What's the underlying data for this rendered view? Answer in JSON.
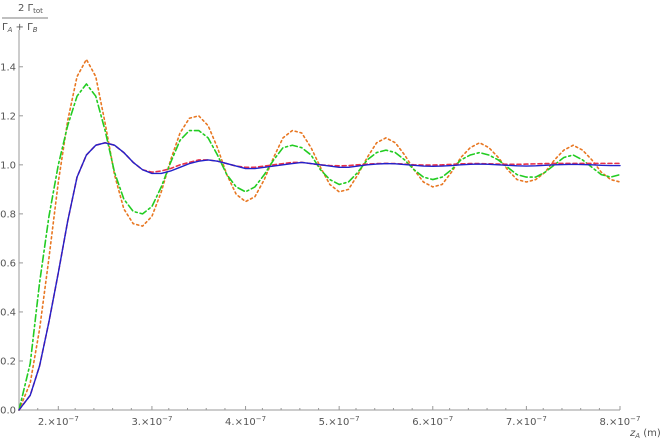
{
  "chart_data": {
    "type": "line",
    "title": "",
    "ylabel": {
      "numerator": "2 Γ",
      "numerator_sub": "tot",
      "denominator": [
        "Γ",
        "A",
        " + Γ",
        "B"
      ]
    },
    "xlabel": {
      "main": "z",
      "sub": "A",
      "unit": " (m)"
    },
    "xlim": [
      1.58e-07,
      8e-07
    ],
    "ylim": [
      0.0,
      1.55
    ],
    "grid": false,
    "x_ticks": [
      {
        "value": 2e-07,
        "mantissa": "2.",
        "base": "×10",
        "exp": "−7"
      },
      {
        "value": 3e-07,
        "mantissa": "3.",
        "base": "×10",
        "exp": "−7"
      },
      {
        "value": 4e-07,
        "mantissa": "4.",
        "base": "×10",
        "exp": "−7"
      },
      {
        "value": 5e-07,
        "mantissa": "5.",
        "base": "×10",
        "exp": "−7"
      },
      {
        "value": 6e-07,
        "mantissa": "6.",
        "base": "×10",
        "exp": "−7"
      },
      {
        "value": 7e-07,
        "mantissa": "7.",
        "base": "×10",
        "exp": "−7"
      },
      {
        "value": 8e-07,
        "mantissa": "8.",
        "base": "×10",
        "exp": "−7"
      }
    ],
    "y_ticks": [
      {
        "value": 0.0,
        "label": "0.0"
      },
      {
        "value": 0.2,
        "label": "0.2"
      },
      {
        "value": 0.4,
        "label": "0.4"
      },
      {
        "value": 0.6,
        "label": "0.6"
      },
      {
        "value": 0.8,
        "label": "0.8"
      },
      {
        "value": 1.0,
        "label": "1.0"
      },
      {
        "value": 1.2,
        "label": "1.2"
      },
      {
        "value": 1.4,
        "label": "1.4"
      }
    ],
    "series": [
      {
        "color": "#e87722",
        "dash": "2,3",
        "width": 1.6,
        "x": [
          1.58e-07,
          1.7e-07,
          1.8e-07,
          1.9e-07,
          2e-07,
          2.1e-07,
          2.2e-07,
          2.3e-07,
          2.4e-07,
          2.5e-07,
          2.6e-07,
          2.7e-07,
          2.8e-07,
          2.9e-07,
          3e-07,
          3.1e-07,
          3.2e-07,
          3.3e-07,
          3.4e-07,
          3.5e-07,
          3.6e-07,
          3.7e-07,
          3.8e-07,
          3.9e-07,
          4e-07,
          4.1e-07,
          4.2e-07,
          4.3e-07,
          4.4e-07,
          4.5e-07,
          4.6e-07,
          4.7e-07,
          4.8e-07,
          4.9e-07,
          5e-07,
          5.1e-07,
          5.2e-07,
          5.3e-07,
          5.4e-07,
          5.5e-07,
          5.6e-07,
          5.7e-07,
          5.8e-07,
          5.9e-07,
          6e-07,
          6.1e-07,
          6.2e-07,
          6.3e-07,
          6.4e-07,
          6.5e-07,
          6.6e-07,
          6.7e-07,
          6.8e-07,
          6.9e-07,
          7e-07,
          7.1e-07,
          7.2e-07,
          7.3e-07,
          7.4e-07,
          7.5e-07,
          7.6e-07,
          7.7e-07,
          7.8e-07,
          7.9e-07,
          8e-07
        ],
        "y": [
          0.0,
          0.11,
          0.33,
          0.62,
          0.93,
          1.18,
          1.36,
          1.43,
          1.36,
          1.17,
          0.96,
          0.82,
          0.76,
          0.75,
          0.79,
          0.89,
          1.02,
          1.13,
          1.19,
          1.2,
          1.16,
          1.07,
          0.96,
          0.88,
          0.85,
          0.87,
          0.94,
          1.03,
          1.11,
          1.14,
          1.13,
          1.07,
          0.99,
          0.92,
          0.89,
          0.9,
          0.96,
          1.03,
          1.09,
          1.11,
          1.09,
          1.04,
          0.98,
          0.93,
          0.91,
          0.92,
          0.97,
          1.03,
          1.07,
          1.09,
          1.07,
          1.03,
          0.98,
          0.94,
          0.93,
          0.94,
          0.97,
          1.02,
          1.06,
          1.08,
          1.06,
          1.02,
          0.97,
          0.94,
          0.93
        ]
      },
      {
        "color": "#22cc22",
        "dash": "7,3,2,3",
        "width": 1.6,
        "x": [
          1.58e-07,
          1.7e-07,
          1.8e-07,
          1.9e-07,
          2e-07,
          2.1e-07,
          2.2e-07,
          2.3e-07,
          2.4e-07,
          2.5e-07,
          2.6e-07,
          2.7e-07,
          2.8e-07,
          2.9e-07,
          3e-07,
          3.1e-07,
          3.2e-07,
          3.3e-07,
          3.4e-07,
          3.5e-07,
          3.6e-07,
          3.7e-07,
          3.8e-07,
          3.9e-07,
          4e-07,
          4.1e-07,
          4.2e-07,
          4.3e-07,
          4.4e-07,
          4.5e-07,
          4.6e-07,
          4.7e-07,
          4.8e-07,
          4.9e-07,
          5e-07,
          5.1e-07,
          5.2e-07,
          5.3e-07,
          5.4e-07,
          5.5e-07,
          5.6e-07,
          5.7e-07,
          5.8e-07,
          5.9e-07,
          6e-07,
          6.1e-07,
          6.2e-07,
          6.3e-07,
          6.4e-07,
          6.5e-07,
          6.6e-07,
          6.7e-07,
          6.8e-07,
          6.9e-07,
          7e-07,
          7.1e-07,
          7.2e-07,
          7.3e-07,
          7.4e-07,
          7.5e-07,
          7.6e-07,
          7.7e-07,
          7.8e-07,
          7.9e-07,
          8e-07
        ],
        "y": [
          0.0,
          0.19,
          0.52,
          0.79,
          1.0,
          1.16,
          1.28,
          1.33,
          1.28,
          1.14,
          0.97,
          0.86,
          0.81,
          0.8,
          0.83,
          0.91,
          1.01,
          1.1,
          1.14,
          1.14,
          1.11,
          1.04,
          0.96,
          0.91,
          0.89,
          0.91,
          0.96,
          1.02,
          1.07,
          1.08,
          1.07,
          1.04,
          0.98,
          0.94,
          0.92,
          0.93,
          0.97,
          1.02,
          1.05,
          1.06,
          1.05,
          1.02,
          0.98,
          0.95,
          0.94,
          0.95,
          0.98,
          1.02,
          1.04,
          1.05,
          1.04,
          1.02,
          0.99,
          0.96,
          0.95,
          0.95,
          0.97,
          1.0,
          1.03,
          1.04,
          1.02,
          0.99,
          0.96,
          0.95,
          0.96
        ]
      },
      {
        "color": "#e8324a",
        "dash": "4,3",
        "width": 1.6,
        "x": [
          1.58e-07,
          1.7e-07,
          1.8e-07,
          1.9e-07,
          2e-07,
          2.1e-07,
          2.2e-07,
          2.3e-07,
          2.4e-07,
          2.5e-07,
          2.6e-07,
          2.7e-07,
          2.8e-07,
          2.9e-07,
          3e-07,
          3.1e-07,
          3.2e-07,
          3.3e-07,
          3.4e-07,
          3.5e-07,
          3.6e-07,
          3.7e-07,
          3.8e-07,
          3.9e-07,
          4e-07,
          4.1e-07,
          4.2e-07,
          4.3e-07,
          4.4e-07,
          4.5e-07,
          4.6e-07,
          4.7e-07,
          4.8e-07,
          4.9e-07,
          5e-07,
          5.1e-07,
          5.2e-07,
          5.3e-07,
          5.4e-07,
          5.5e-07,
          5.6e-07,
          5.7e-07,
          5.8e-07,
          5.9e-07,
          6e-07,
          6.1e-07,
          6.2e-07,
          6.3e-07,
          6.4e-07,
          6.5e-07,
          6.6e-07,
          6.7e-07,
          6.8e-07,
          6.9e-07,
          7e-07,
          7.1e-07,
          7.2e-07,
          7.3e-07,
          7.4e-07,
          7.5e-07,
          7.6e-07,
          7.7e-07,
          7.8e-07,
          7.9e-07,
          8e-07
        ],
        "y": [
          0.0,
          0.06,
          0.18,
          0.36,
          0.56,
          0.77,
          0.95,
          1.04,
          1.08,
          1.09,
          1.08,
          1.05,
          1.01,
          0.98,
          0.97,
          0.975,
          0.985,
          1.0,
          1.01,
          1.02,
          1.02,
          1.015,
          1.005,
          0.995,
          0.99,
          0.99,
          0.995,
          1.0,
          1.005,
          1.01,
          1.01,
          1.005,
          1.0,
          0.997,
          0.996,
          0.997,
          1.0,
          1.003,
          1.005,
          1.006,
          1.005,
          1.003,
          1.0,
          0.999,
          0.999,
          1.0,
          1.002,
          1.004,
          1.005,
          1.005,
          1.004,
          1.003,
          1.002,
          1.002,
          1.003,
          1.004,
          1.005,
          1.006,
          1.006,
          1.006,
          1.006,
          1.006,
          1.006,
          1.006,
          1.006
        ]
      },
      {
        "color": "#2222cc",
        "dash": "",
        "width": 1.4,
        "x": [
          1.58e-07,
          1.7e-07,
          1.8e-07,
          1.9e-07,
          2e-07,
          2.1e-07,
          2.2e-07,
          2.3e-07,
          2.4e-07,
          2.5e-07,
          2.6e-07,
          2.7e-07,
          2.8e-07,
          2.9e-07,
          3e-07,
          3.1e-07,
          3.2e-07,
          3.3e-07,
          3.4e-07,
          3.5e-07,
          3.6e-07,
          3.7e-07,
          3.8e-07,
          3.9e-07,
          4e-07,
          4.1e-07,
          4.2e-07,
          4.3e-07,
          4.4e-07,
          4.5e-07,
          4.6e-07,
          4.7e-07,
          4.8e-07,
          4.9e-07,
          5e-07,
          5.1e-07,
          5.2e-07,
          5.3e-07,
          5.4e-07,
          5.5e-07,
          5.6e-07,
          5.7e-07,
          5.8e-07,
          5.9e-07,
          6e-07,
          6.1e-07,
          6.2e-07,
          6.3e-07,
          6.4e-07,
          6.5e-07,
          6.6e-07,
          6.7e-07,
          6.8e-07,
          6.9e-07,
          7e-07,
          7.1e-07,
          7.2e-07,
          7.3e-07,
          7.4e-07,
          7.5e-07,
          7.6e-07,
          7.7e-07,
          7.8e-07,
          7.9e-07,
          8e-07
        ],
        "y": [
          0.0,
          0.06,
          0.18,
          0.36,
          0.56,
          0.77,
          0.95,
          1.04,
          1.08,
          1.09,
          1.08,
          1.05,
          1.01,
          0.98,
          0.965,
          0.965,
          0.975,
          0.99,
          1.005,
          1.015,
          1.02,
          1.015,
          1.005,
          0.995,
          0.985,
          0.985,
          0.99,
          0.995,
          1.0,
          1.005,
          1.01,
          1.005,
          1.0,
          0.995,
          0.99,
          0.99,
          0.995,
          1.0,
          1.003,
          1.005,
          1.004,
          1.001,
          0.998,
          0.995,
          0.994,
          0.995,
          0.997,
          1.0,
          1.002,
          1.003,
          1.002,
          1.0,
          0.998,
          0.996,
          0.995,
          0.996,
          0.998,
          1.0,
          1.001,
          1.002,
          1.001,
          1.0,
          0.998,
          0.997,
          0.997
        ]
      }
    ]
  }
}
